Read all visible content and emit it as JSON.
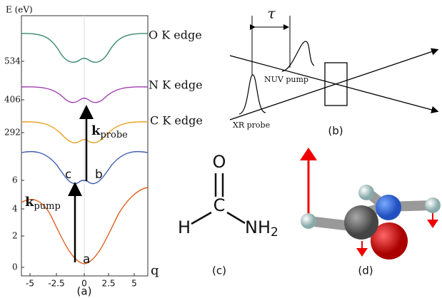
{
  "panel_a": {
    "y_axis_label": "E (eV)",
    "y_tick_labels": [
      "534",
      "406",
      "292",
      "6",
      "4",
      "2",
      "0"
    ],
    "x_tick_labels": [
      "-5",
      "-2.5",
      "0",
      "2.5",
      "5"
    ],
    "x_axis_label": "q",
    "edge_labels": [
      "O K edge",
      "N K edge",
      "C K edge"
    ],
    "pump_label": {
      "symbol": "k",
      "subscript": "pump"
    },
    "probe_label": {
      "symbol": "k",
      "subscript": "probe"
    },
    "point_labels": [
      "a",
      "b",
      "c"
    ],
    "caption": "(a)"
  },
  "panel_b": {
    "delay": "τ",
    "pump": "NUV pump",
    "probe": "XR probe",
    "caption": "(b)"
  },
  "panel_c": {
    "atoms": [
      "O",
      "C",
      "H",
      "NH"
    ],
    "subscript": "2",
    "caption": "(c)"
  },
  "panel_d": {
    "caption": "(d)"
  }
}
